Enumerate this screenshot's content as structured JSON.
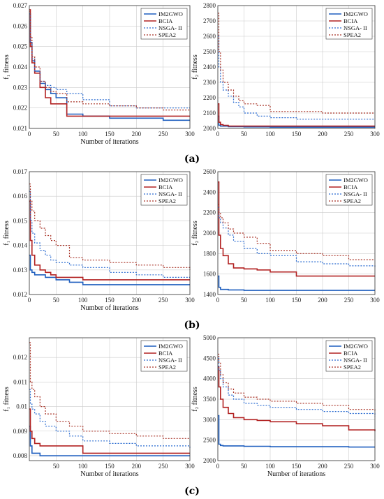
{
  "colors": {
    "IM2GWO": "#1f5fbf",
    "BCIA": "#b22222",
    "NSGA- II": "#2a6bd0",
    "SPEA2": "#a83226",
    "grid": "#cccccc"
  },
  "legend_entries": [
    "IM2GWO",
    "BCIA",
    "NSGA- II",
    "SPEA2"
  ],
  "panel_labels": [
    "(a)",
    "(b)",
    "(c)"
  ],
  "chart_data": [
    {
      "type": "line",
      "row": "(a)",
      "col": "left",
      "ylabel": "f₁ fitness",
      "xlabel": "Number of iterations",
      "xlim": [
        0,
        300
      ],
      "ylim": [
        0.021,
        0.027
      ],
      "yticks": [
        "0.021",
        "0.022",
        "0.023",
        "0.024",
        "0.025",
        "0.026",
        "0.027"
      ],
      "xticks": [
        "0",
        "50",
        "100",
        "150",
        "200",
        "250",
        "300"
      ],
      "grid": true,
      "legend_position": "top-right",
      "series": [
        {
          "name": "IM2GWO",
          "x": [
            0,
            2,
            5,
            10,
            20,
            30,
            40,
            50,
            70,
            100,
            150,
            200,
            250,
            300
          ],
          "y": [
            0.0266,
            0.0252,
            0.0243,
            0.0238,
            0.0232,
            0.0229,
            0.0227,
            0.0225,
            0.0217,
            0.0216,
            0.0215,
            0.0215,
            0.0214,
            0.0214
          ]
        },
        {
          "name": "BCIA",
          "x": [
            0,
            2,
            5,
            10,
            20,
            30,
            40,
            50,
            70,
            100,
            150,
            200,
            250,
            300
          ],
          "y": [
            0.0268,
            0.025,
            0.0242,
            0.0237,
            0.023,
            0.0225,
            0.0222,
            0.0222,
            0.0216,
            0.0216,
            0.0216,
            0.0216,
            0.0216,
            0.0216
          ]
        },
        {
          "name": "NSGA- II",
          "x": [
            0,
            2,
            5,
            10,
            20,
            30,
            40,
            50,
            70,
            100,
            150,
            200,
            250,
            300
          ],
          "y": [
            0.0266,
            0.0252,
            0.0244,
            0.0238,
            0.0233,
            0.0231,
            0.023,
            0.0229,
            0.0227,
            0.0224,
            0.0221,
            0.022,
            0.022,
            0.022
          ]
        },
        {
          "name": "SPEA2",
          "x": [
            0,
            2,
            5,
            10,
            20,
            30,
            40,
            50,
            70,
            100,
            150,
            200,
            250,
            300
          ],
          "y": [
            0.0267,
            0.0255,
            0.0245,
            0.024,
            0.0233,
            0.023,
            0.0228,
            0.0227,
            0.0223,
            0.0222,
            0.0221,
            0.022,
            0.0219,
            0.0219
          ]
        }
      ]
    },
    {
      "type": "line",
      "row": "(a)",
      "col": "right",
      "ylabel": "f₂ fitness",
      "xlabel": "",
      "xlim": [
        0,
        300
      ],
      "ylim": [
        2000,
        2800
      ],
      "yticks": [
        "2000",
        "2100",
        "2200",
        "2300",
        "2400",
        "2500",
        "2600",
        "2700",
        "2800"
      ],
      "xticks": [
        "0",
        "50",
        "100",
        "150",
        "200",
        "250",
        "300"
      ],
      "grid": true,
      "legend_position": "top-right",
      "series": [
        {
          "name": "IM2GWO",
          "x": [
            0,
            2,
            5,
            10,
            20,
            50,
            80,
            100,
            300
          ],
          "y": [
            2080,
            2020,
            2015,
            2015,
            2012,
            2010,
            2010,
            2008,
            2008
          ]
        },
        {
          "name": "BCIA",
          "x": [
            0,
            2,
            5,
            10,
            20,
            50,
            80,
            100,
            300
          ],
          "y": [
            2160,
            2040,
            2025,
            2020,
            2015,
            2015,
            2015,
            2015,
            2015
          ]
        },
        {
          "name": "NSGA- II",
          "x": [
            0,
            2,
            5,
            10,
            20,
            30,
            40,
            50,
            75,
            100,
            150,
            200,
            250,
            300
          ],
          "y": [
            2600,
            2400,
            2300,
            2250,
            2210,
            2170,
            2140,
            2100,
            2080,
            2070,
            2060,
            2060,
            2060,
            2060
          ]
        },
        {
          "name": "SPEA2",
          "x": [
            0,
            2,
            5,
            10,
            20,
            30,
            40,
            50,
            75,
            100,
            150,
            200,
            250,
            300
          ],
          "y": [
            2750,
            2500,
            2380,
            2300,
            2250,
            2210,
            2180,
            2160,
            2150,
            2110,
            2110,
            2100,
            2100,
            2100
          ]
        }
      ]
    },
    {
      "type": "line",
      "row": "(b)",
      "col": "left",
      "ylabel": "f₁ fitness",
      "xlabel": "Number of iterations",
      "xlim": [
        0,
        300
      ],
      "ylim": [
        0.012,
        0.017
      ],
      "yticks": [
        "0.012",
        "0.013",
        "0.014",
        "0.015",
        "0.016",
        "0.017"
      ],
      "xticks": [
        "0",
        "50",
        "100",
        "150",
        "200",
        "250",
        "300"
      ],
      "grid": true,
      "legend_position": "top-right",
      "series": [
        {
          "name": "IM2GWO",
          "x": [
            0,
            2,
            5,
            10,
            20,
            30,
            40,
            50,
            75,
            100,
            150,
            200,
            250,
            300
          ],
          "y": [
            0.0136,
            0.013,
            0.0129,
            0.0128,
            0.0128,
            0.0127,
            0.0127,
            0.0126,
            0.0125,
            0.0124,
            0.0124,
            0.0124,
            0.0124,
            0.0124
          ]
        },
        {
          "name": "BCIA",
          "x": [
            0,
            2,
            5,
            10,
            20,
            30,
            40,
            50,
            75,
            100,
            150,
            200,
            250,
            300
          ],
          "y": [
            0.0158,
            0.0142,
            0.0136,
            0.0132,
            0.013,
            0.0129,
            0.0128,
            0.0127,
            0.0127,
            0.0126,
            0.0126,
            0.0126,
            0.0126,
            0.0126
          ]
        },
        {
          "name": "NSGA- II",
          "x": [
            0,
            2,
            5,
            10,
            20,
            30,
            40,
            50,
            75,
            100,
            150,
            200,
            250,
            300
          ],
          "y": [
            0.0162,
            0.015,
            0.0145,
            0.0141,
            0.0138,
            0.0136,
            0.0134,
            0.0133,
            0.0132,
            0.0131,
            0.0129,
            0.0128,
            0.0127,
            0.0127
          ]
        },
        {
          "name": "SPEA2",
          "x": [
            0,
            2,
            5,
            10,
            20,
            30,
            40,
            50,
            75,
            100,
            150,
            200,
            250,
            300
          ],
          "y": [
            0.0165,
            0.0158,
            0.0154,
            0.015,
            0.0147,
            0.0144,
            0.0142,
            0.014,
            0.0135,
            0.0134,
            0.0133,
            0.0132,
            0.0131,
            0.013
          ]
        }
      ]
    },
    {
      "type": "line",
      "row": "(b)",
      "col": "right",
      "ylabel": "f₂ fitness",
      "xlabel": "",
      "xlim": [
        0,
        300
      ],
      "ylim": [
        1400,
        2600
      ],
      "yticks": [
        "1400",
        "1600",
        "1800",
        "2000",
        "2200",
        "2400",
        "2600"
      ],
      "xticks": [
        "0",
        "50",
        "100",
        "150",
        "200",
        "250",
        "300"
      ],
      "grid": true,
      "legend_position": "top-right",
      "series": [
        {
          "name": "IM2GWO",
          "x": [
            0,
            2,
            5,
            10,
            20,
            50,
            100,
            150,
            200,
            250,
            300
          ],
          "y": [
            1580,
            1470,
            1450,
            1450,
            1445,
            1440,
            1440,
            1440,
            1440,
            1440,
            1440
          ]
        },
        {
          "name": "BCIA",
          "x": [
            0,
            2,
            5,
            10,
            20,
            30,
            50,
            75,
            100,
            150,
            200,
            250,
            300
          ],
          "y": [
            2500,
            1980,
            1850,
            1780,
            1700,
            1660,
            1650,
            1640,
            1620,
            1580,
            1580,
            1580,
            1580
          ]
        },
        {
          "name": "NSGA- II",
          "x": [
            0,
            2,
            5,
            10,
            20,
            30,
            50,
            75,
            100,
            150,
            200,
            250,
            300
          ],
          "y": [
            2250,
            2150,
            2100,
            2050,
            1980,
            1920,
            1850,
            1800,
            1780,
            1720,
            1700,
            1680,
            1660
          ]
        },
        {
          "name": "SPEA2",
          "x": [
            0,
            2,
            5,
            10,
            20,
            30,
            50,
            75,
            100,
            150,
            200,
            250,
            300
          ],
          "y": [
            2280,
            2200,
            2150,
            2100,
            2040,
            2000,
            1960,
            1900,
            1830,
            1800,
            1780,
            1740,
            1740
          ]
        }
      ]
    },
    {
      "type": "line",
      "row": "(c)",
      "col": "left",
      "ylabel": "f₁ fitness",
      "xlabel": "Number of iterations",
      "xlim": [
        0,
        300
      ],
      "ylim": [
        0.0078,
        0.0128
      ],
      "yticks": [
        "0.008",
        "0.009",
        "0.01",
        "0.011",
        "0.012"
      ],
      "xticks": [
        "50",
        "100",
        "150",
        "200",
        "250",
        "300"
      ],
      "grid": true,
      "legend_position": "top-right",
      "series": [
        {
          "name": "IM2GWO",
          "x": [
            0,
            2,
            5,
            10,
            20,
            50,
            100,
            150,
            200,
            250,
            300
          ],
          "y": [
            0.0092,
            0.0084,
            0.0081,
            0.0081,
            0.008,
            0.008,
            0.008,
            0.008,
            0.008,
            0.008,
            0.008
          ]
        },
        {
          "name": "BCIA",
          "x": [
            0,
            2,
            5,
            10,
            20,
            50,
            75,
            100,
            150,
            200,
            250,
            300
          ],
          "y": [
            0.0099,
            0.009,
            0.0087,
            0.0085,
            0.0084,
            0.0084,
            0.0084,
            0.0081,
            0.0081,
            0.0081,
            0.0081,
            0.0081
          ]
        },
        {
          "name": "NSGA- II",
          "x": [
            0,
            2,
            5,
            10,
            20,
            30,
            50,
            75,
            100,
            150,
            200,
            250,
            300
          ],
          "y": [
            0.0107,
            0.0101,
            0.0099,
            0.0097,
            0.0094,
            0.0092,
            0.009,
            0.0088,
            0.0086,
            0.0085,
            0.0084,
            0.0084,
            0.0083
          ]
        },
        {
          "name": "SPEA2",
          "x": [
            0,
            2,
            5,
            10,
            20,
            30,
            50,
            75,
            100,
            150,
            200,
            250,
            300
          ],
          "y": [
            0.0126,
            0.011,
            0.0107,
            0.0104,
            0.01,
            0.0097,
            0.0094,
            0.0092,
            0.009,
            0.0089,
            0.0088,
            0.0087,
            0.0087
          ]
        }
      ]
    },
    {
      "type": "line",
      "row": "(c)",
      "col": "right",
      "ylabel": "f₂ fitness",
      "xlabel": "Number of iterations",
      "xlim": [
        0,
        300
      ],
      "ylim": [
        2000,
        5000
      ],
      "yticks": [
        "2000",
        "2500",
        "3000",
        "3500",
        "4000",
        "4500",
        "5000"
      ],
      "xticks": [
        "0",
        "50",
        "100",
        "150",
        "200",
        "250",
        "300"
      ],
      "grid": true,
      "legend_position": "top-right",
      "series": [
        {
          "name": "IM2GWO",
          "x": [
            0,
            2,
            5,
            10,
            50,
            100,
            150,
            200,
            250,
            300
          ],
          "y": [
            3100,
            2400,
            2370,
            2360,
            2350,
            2340,
            2340,
            2340,
            2330,
            2330
          ]
        },
        {
          "name": "BCIA",
          "x": [
            0,
            2,
            5,
            10,
            20,
            30,
            50,
            75,
            100,
            150,
            200,
            250,
            300
          ],
          "y": [
            4300,
            3800,
            3500,
            3300,
            3150,
            3050,
            3000,
            2980,
            2950,
            2900,
            2850,
            2750,
            2720
          ]
        },
        {
          "name": "NSGA- II",
          "x": [
            0,
            2,
            5,
            10,
            20,
            30,
            50,
            75,
            100,
            150,
            200,
            250,
            300
          ],
          "y": [
            4500,
            4200,
            4000,
            3800,
            3600,
            3500,
            3400,
            3350,
            3300,
            3250,
            3200,
            3150,
            3080
          ]
        },
        {
          "name": "SPEA2",
          "x": [
            0,
            2,
            5,
            10,
            20,
            30,
            50,
            75,
            100,
            150,
            200,
            250,
            300
          ],
          "y": [
            4600,
            4400,
            4100,
            3900,
            3750,
            3650,
            3550,
            3500,
            3450,
            3400,
            3350,
            3250,
            3220
          ]
        }
      ]
    }
  ]
}
